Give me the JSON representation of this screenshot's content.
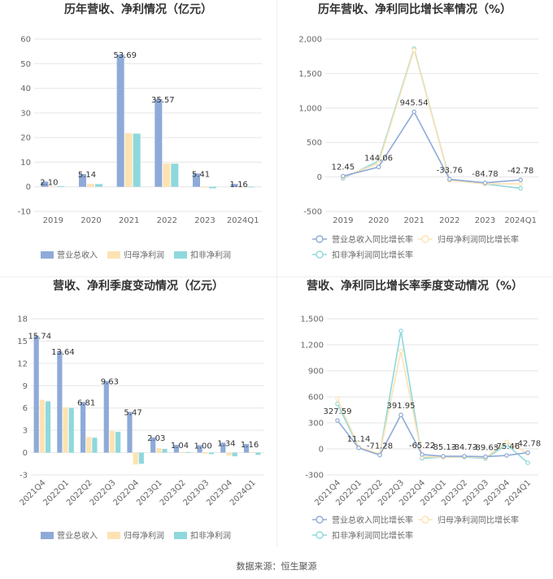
{
  "source_text": "数据来源：恒生聚源",
  "colors": {
    "revenue": "#8eaad8",
    "net_profit": "#fde3b3",
    "deducted_profit": "#8ed8dc",
    "axis_text": "#666666",
    "grid": "#e6e6e6",
    "label": "#333333"
  },
  "chart_data": [
    {
      "type": "bar",
      "title": "历年营收、净利情况（亿元）",
      "categories": [
        "2019",
        "2020",
        "2021",
        "2022",
        "2023",
        "2024Q1"
      ],
      "series": [
        {
          "name": "营业总收入",
          "values": [
            2.1,
            5.14,
            53.69,
            35.57,
            5.41,
            1.16
          ]
        },
        {
          "name": "归母净利润",
          "values": [
            0.3,
            1.2,
            21.8,
            9.5,
            -0.3,
            0.1
          ]
        },
        {
          "name": "扣非净利润",
          "values": [
            0.3,
            1.1,
            21.6,
            9.4,
            -0.6,
            0.05
          ]
        }
      ],
      "data_labels": [
        "2.10",
        "5.14",
        "53.69",
        "35.57",
        "5.41",
        "1.16"
      ],
      "yticks": [
        "-10",
        "0",
        "10",
        "20",
        "30",
        "40",
        "50",
        "60"
      ],
      "ylim": [
        -10,
        60
      ],
      "grid": true,
      "legend": "bottom"
    },
    {
      "type": "line",
      "title": "历年营收、净利同比增长率情况（%）",
      "categories": [
        "2019",
        "2020",
        "2021",
        "2022",
        "2023",
        "2024Q1"
      ],
      "series": [
        {
          "name": "营业总收入同比增长率",
          "values": [
            12.45,
            144.06,
            945.54,
            -33.76,
            -84.78,
            -42.78
          ]
        },
        {
          "name": "归母净利润同比增长率",
          "values": [
            -5,
            200,
            1840,
            -50,
            -100,
            -100
          ]
        },
        {
          "name": "扣非净利润同比增长率",
          "values": [
            -20,
            230,
            1860,
            -40,
            -102,
            -165
          ]
        }
      ],
      "data_labels": [
        "12.45",
        "144.06",
        "945.54",
        "-33.76",
        "-84.78",
        "-42.78"
      ],
      "yticks": [
        "-500",
        "0",
        "500",
        "1,000",
        "1,500",
        "2,000"
      ],
      "ylim": [
        -500,
        2000
      ],
      "grid": true,
      "legend": "bottom"
    },
    {
      "type": "bar",
      "title": "营收、净利季度变动情况（亿元）",
      "categories": [
        "2021Q4",
        "2022Q1",
        "2022Q2",
        "2022Q3",
        "2022Q4",
        "2023Q1",
        "2023Q2",
        "2023Q3",
        "2023Q4",
        "2024Q1"
      ],
      "series": [
        {
          "name": "营业总收入",
          "values": [
            15.74,
            13.64,
            6.81,
            9.63,
            5.47,
            2.03,
            1.04,
            1.0,
            1.34,
            1.16
          ]
        },
        {
          "name": "归母净利润",
          "values": [
            7.1,
            6.1,
            2.1,
            2.9,
            -1.6,
            0.6,
            0.1,
            -0.15,
            -0.4,
            0.1
          ]
        },
        {
          "name": "扣非净利润",
          "values": [
            6.9,
            6.0,
            2.0,
            2.8,
            -1.5,
            0.5,
            0.05,
            -0.2,
            -0.5,
            -0.3
          ]
        }
      ],
      "data_labels": [
        "15.74",
        "13.64",
        "6.81",
        "9.63",
        "5.47",
        "2.03",
        "1.04",
        "1.00",
        "1.34",
        "1.16"
      ],
      "yticks": [
        "-3",
        "0",
        "3",
        "6",
        "9",
        "12",
        "15",
        "18"
      ],
      "ylim": [
        -3,
        18
      ],
      "grid": true,
      "legend": "bottom"
    },
    {
      "type": "line",
      "title": "营收、净利同比增长率季度变动情况（%）",
      "categories": [
        "2021Q4",
        "2022Q1",
        "2022Q2",
        "2022Q3",
        "2022Q4",
        "2023Q1",
        "2023Q2",
        "2023Q3",
        "2023Q4",
        "2024Q1"
      ],
      "series": [
        {
          "name": "营业总收入同比增长率",
          "values": [
            327.59,
            11.14,
            -71.28,
            391.95,
            -65.22,
            -85.13,
            -84.73,
            -89.63,
            -75.46,
            -42.78
          ]
        },
        {
          "name": "归母净利润同比增长率",
          "values": [
            580,
            20,
            -60,
            1130,
            -90,
            -95,
            -90,
            -100,
            80,
            -50
          ]
        },
        {
          "name": "扣非净利润同比增长率",
          "values": [
            520,
            15,
            -65,
            1360,
            -110,
            -95,
            -95,
            -110,
            50,
            -160
          ]
        }
      ],
      "data_labels": [
        "327.59",
        "11.14",
        "-71.28",
        "391.95",
        "-65.22",
        "-85.13",
        "-84.73",
        "-89.63",
        "-75.46",
        "-42.78"
      ],
      "yticks": [
        "-300",
        "0",
        "300",
        "600",
        "900",
        "1,200",
        "1,500"
      ],
      "ylim": [
        -300,
        1500
      ],
      "grid": true,
      "legend": "bottom"
    }
  ]
}
